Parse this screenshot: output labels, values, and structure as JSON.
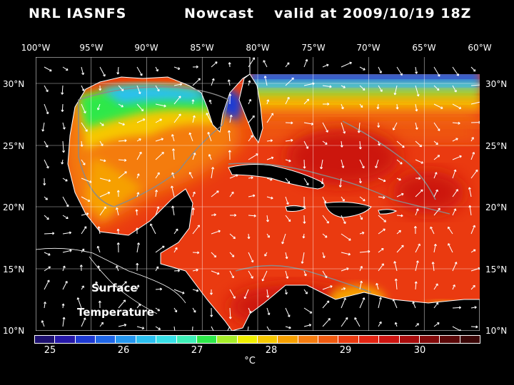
{
  "header": {
    "source": "NRL IASNFS",
    "product": "Nowcast",
    "valid": "valid at 2009/10/19 18Z"
  },
  "axes": {
    "lon_labels": [
      "100°W",
      "95°W",
      "90°W",
      "85°W",
      "80°W",
      "75°W",
      "70°W",
      "65°W",
      "60°W"
    ],
    "lat_labels": [
      "30°N",
      "25°N",
      "20°N",
      "15°N",
      "10°N"
    ]
  },
  "map_annotation": {
    "line1": "Surface",
    "line2": "Temperature"
  },
  "colorbar": {
    "ticks": [
      "25",
      "26",
      "27",
      "28",
      "29",
      "30"
    ],
    "unit": "°C",
    "colors": [
      "#1d1070",
      "#2618a8",
      "#1e3ad2",
      "#1f66e6",
      "#2596ee",
      "#2cc0f0",
      "#38e0e8",
      "#3ef0b8",
      "#2ee84a",
      "#a6ee2a",
      "#f0f000",
      "#f6c800",
      "#f6a000",
      "#f47c10",
      "#ef5a10",
      "#ea3a10",
      "#e22412",
      "#cc1410",
      "#a80c0c",
      "#820a0a",
      "#5a0808",
      "#3a0606"
    ]
  }
}
